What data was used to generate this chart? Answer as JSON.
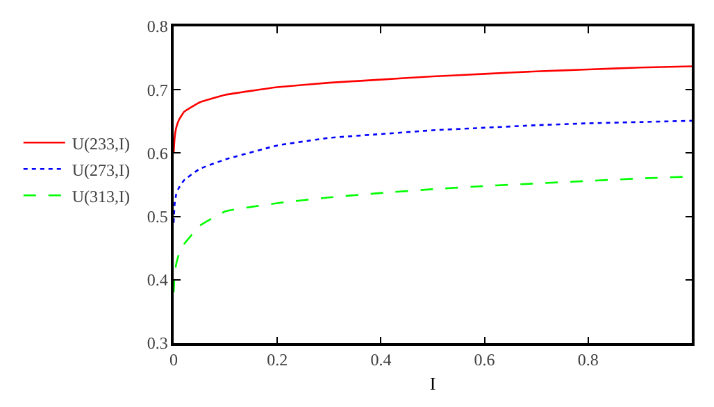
{
  "chart_data": {
    "type": "line",
    "xlabel": "I",
    "x": [
      0,
      0.002,
      0.005,
      0.01,
      0.02,
      0.05,
      0.1,
      0.2,
      0.3,
      0.4,
      0.5,
      0.6,
      0.7,
      0.8,
      0.9,
      1.0
    ],
    "series": [
      {
        "name": "U(233,I)",
        "color": "#ff0000",
        "line_style": "solid",
        "values": [
          0.6,
          0.625,
          0.64,
          0.652,
          0.665,
          0.68,
          0.692,
          0.704,
          0.711,
          0.716,
          0.721,
          0.725,
          0.729,
          0.732,
          0.735,
          0.737
        ]
      },
      {
        "name": "U(273,I)",
        "color": "#0000ff",
        "line_style": "dotted",
        "values": [
          0.49,
          0.52,
          0.535,
          0.545,
          0.557,
          0.575,
          0.59,
          0.612,
          0.624,
          0.63,
          0.636,
          0.64,
          0.644,
          0.647,
          0.649,
          0.651
        ]
      },
      {
        "name": "U(313,I)",
        "color": "#00ff00",
        "line_style": "dashed",
        "values": [
          0.38,
          0.41,
          0.425,
          0.44,
          0.456,
          0.485,
          0.508,
          0.521,
          0.53,
          0.537,
          0.543,
          0.548,
          0.552,
          0.556,
          0.56,
          0.563
        ]
      }
    ],
    "xlim": [
      0,
      1
    ],
    "xticks": [
      0,
      0.2,
      0.4,
      0.6,
      0.8
    ],
    "ylim": [
      0.3,
      0.8
    ],
    "yticks": [
      0.3,
      0.4,
      0.5,
      0.6,
      0.7,
      0.8
    ],
    "legend": "left",
    "marker": "none"
  }
}
